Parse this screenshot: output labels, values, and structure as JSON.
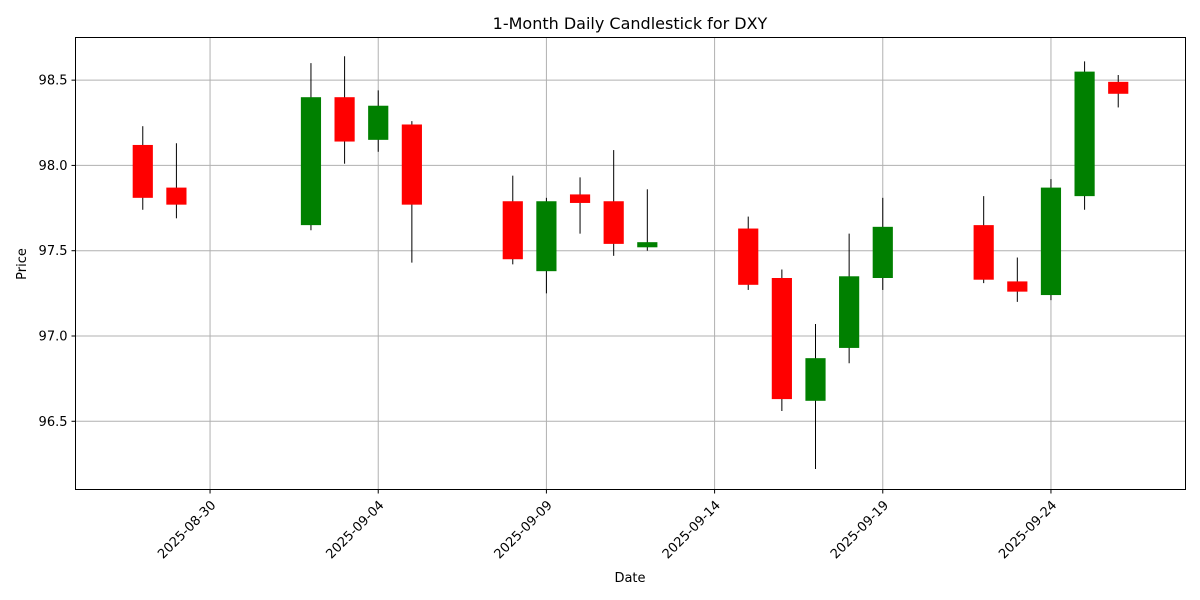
{
  "chart_data": {
    "type": "candlestick",
    "title": "1-Month Daily Candlestick for DXY",
    "xlabel": "Date",
    "ylabel": "Price",
    "ylim": [
      96.1,
      98.75
    ],
    "xlim": [
      "2025-08-26",
      "2025-09-28"
    ],
    "grid": true,
    "colors": {
      "up": "#008000",
      "down": "#ff0000",
      "wick": "#000000"
    },
    "x_ticks": [
      "2025-08-30",
      "2025-09-04",
      "2025-09-09",
      "2025-09-14",
      "2025-09-19",
      "2025-09-24"
    ],
    "y_ticks": [
      "96.5",
      "97.0",
      "97.5",
      "98.0",
      "98.5"
    ],
    "candles": [
      {
        "date": "2025-08-28",
        "open": 98.12,
        "high": 98.23,
        "low": 97.74,
        "close": 97.81
      },
      {
        "date": "2025-08-29",
        "open": 97.87,
        "high": 98.13,
        "low": 97.69,
        "close": 97.77
      },
      {
        "date": "2025-09-02",
        "open": 97.65,
        "high": 98.6,
        "low": 97.62,
        "close": 98.4
      },
      {
        "date": "2025-09-03",
        "open": 98.4,
        "high": 98.64,
        "low": 98.01,
        "close": 98.14
      },
      {
        "date": "2025-09-04",
        "open": 98.15,
        "high": 98.44,
        "low": 98.08,
        "close": 98.35
      },
      {
        "date": "2025-09-05",
        "open": 98.24,
        "high": 98.26,
        "low": 97.43,
        "close": 97.77
      },
      {
        "date": "2025-09-08",
        "open": 97.79,
        "high": 97.94,
        "low": 97.42,
        "close": 97.45
      },
      {
        "date": "2025-09-09",
        "open": 97.38,
        "high": 97.81,
        "low": 97.25,
        "close": 97.79
      },
      {
        "date": "2025-09-10",
        "open": 97.83,
        "high": 97.93,
        "low": 97.6,
        "close": 97.78
      },
      {
        "date": "2025-09-11",
        "open": 97.79,
        "high": 98.09,
        "low": 97.47,
        "close": 97.54
      },
      {
        "date": "2025-09-12",
        "open": 97.52,
        "high": 97.86,
        "low": 97.5,
        "close": 97.55
      },
      {
        "date": "2025-09-15",
        "open": 97.63,
        "high": 97.7,
        "low": 97.27,
        "close": 97.3
      },
      {
        "date": "2025-09-16",
        "open": 97.34,
        "high": 97.39,
        "low": 96.56,
        "close": 96.63
      },
      {
        "date": "2025-09-17",
        "open": 96.62,
        "high": 97.07,
        "low": 96.22,
        "close": 96.87
      },
      {
        "date": "2025-09-18",
        "open": 96.93,
        "high": 97.6,
        "low": 96.84,
        "close": 97.35
      },
      {
        "date": "2025-09-19",
        "open": 97.34,
        "high": 97.81,
        "low": 97.27,
        "close": 97.64
      },
      {
        "date": "2025-09-22",
        "open": 97.65,
        "high": 97.82,
        "low": 97.31,
        "close": 97.33
      },
      {
        "date": "2025-09-23",
        "open": 97.32,
        "high": 97.46,
        "low": 97.2,
        "close": 97.26
      },
      {
        "date": "2025-09-24",
        "open": 97.24,
        "high": 97.92,
        "low": 97.21,
        "close": 97.87
      },
      {
        "date": "2025-09-25",
        "open": 97.82,
        "high": 98.61,
        "low": 97.74,
        "close": 98.55
      },
      {
        "date": "2025-09-26",
        "open": 98.49,
        "high": 98.53,
        "low": 98.34,
        "close": 98.42
      }
    ]
  }
}
